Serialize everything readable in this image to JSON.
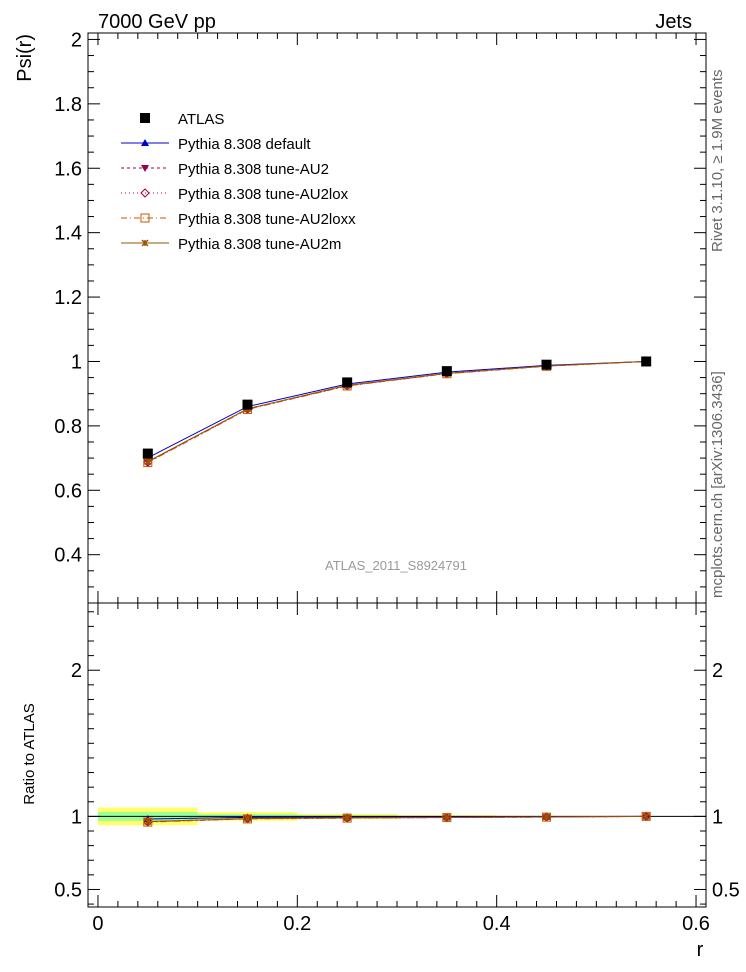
{
  "header": {
    "left": "7000 GeV pp",
    "right": "Jets"
  },
  "side_text": {
    "rivet": "Rivet 3.1.10, ≥ 1.9M events",
    "source": "mcplots.cern.ch [arXiv:1306.3436]"
  },
  "watermark": "ATLAS_2011_S8924791",
  "chart_data": {
    "type": "line",
    "main": {
      "ylabel": "Psi(r)",
      "ylim": [
        0.25,
        2.02
      ],
      "yticks": [
        0.4,
        0.6,
        0.8,
        1,
        1.2,
        1.4,
        1.6,
        1.8,
        2
      ],
      "ytick_labels": [
        "0.4",
        "0.6",
        "0.8",
        "1",
        "1.2",
        "1.4",
        "1.6",
        "1.8",
        "2"
      ]
    },
    "ratio": {
      "ylabel": "Ratio to ATLAS",
      "ylim": [
        0.38,
        2.46
      ],
      "yticks": [
        0.5,
        1,
        2
      ],
      "ytick_labels": [
        "0.5",
        "1",
        "2"
      ]
    },
    "xlabel": "r",
    "xlim": [
      -0.01,
      0.61
    ],
    "xticks": [
      0,
      0.2,
      0.4,
      0.6
    ],
    "xtick_labels": [
      "0",
      "0.2",
      "0.4",
      "0.6"
    ],
    "x": [
      0.05,
      0.15,
      0.25,
      0.35,
      0.45,
      0.55
    ],
    "data": {
      "name": "ATLAS",
      "values": [
        0.714,
        0.866,
        0.935,
        0.97,
        0.99,
        1.0
      ],
      "rel_err_inner": [
        0.03,
        0.015,
        0.008,
        0.004,
        0.002,
        0.0
      ],
      "rel_err_outer": [
        0.06,
        0.03,
        0.017,
        0.008,
        0.004,
        0.0
      ]
    },
    "series": [
      {
        "name": "Pythia 8.308 default",
        "color": "#0000cc",
        "marker": "triangle",
        "dash": "",
        "values": [
          0.701,
          0.86,
          0.93,
          0.967,
          0.988,
          1.0
        ]
      },
      {
        "name": "Pythia 8.308 tune-AU2",
        "color": "#99004c",
        "marker": "triangle-down",
        "dash": "3,3",
        "values": [
          0.688,
          0.853,
          0.925,
          0.963,
          0.986,
          1.0
        ]
      },
      {
        "name": "Pythia 8.308 tune-AU2lox",
        "color": "#aa0033",
        "marker": "diamond-open",
        "dash": "1,3",
        "values": [
          0.687,
          0.852,
          0.924,
          0.962,
          0.986,
          1.0
        ]
      },
      {
        "name": "Pythia 8.308 tune-AU2loxx",
        "color": "#cc5500",
        "marker": "square-open",
        "dash": "6,3,1,3",
        "values": [
          0.686,
          0.851,
          0.924,
          0.962,
          0.985,
          1.0
        ]
      },
      {
        "name": "Pythia 8.308 tune-AU2m",
        "color": "#995500",
        "marker": "star",
        "dash": "",
        "values": [
          0.689,
          0.853,
          0.926,
          0.963,
          0.986,
          1.0
        ]
      }
    ],
    "grid": false,
    "legend_position": "top-left"
  }
}
